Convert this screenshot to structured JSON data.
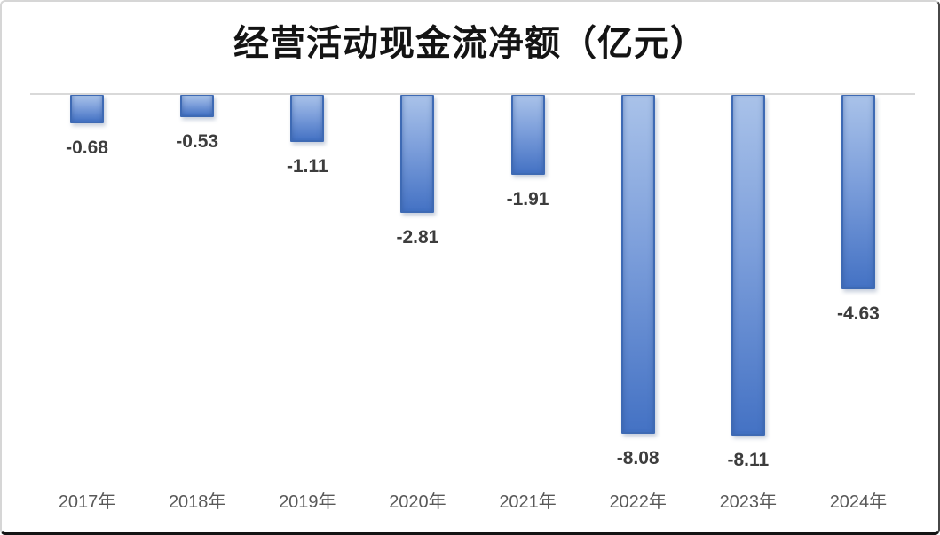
{
  "title": "经营活动现金流净额（亿元）",
  "chart_data": {
    "type": "bar",
    "title": "经营活动现金流净额（亿元）",
    "categories": [
      "2017年",
      "2018年",
      "2019年",
      "2020年",
      "2021年",
      "2022年",
      "2023年",
      "2024年"
    ],
    "values": [
      -0.68,
      -0.53,
      -1.11,
      -2.81,
      -1.91,
      -8.08,
      -8.11,
      -4.63
    ],
    "labels": [
      "-0.68",
      "-0.53",
      "-1.11",
      "-2.81",
      "-1.91",
      "-8.08",
      "-8.11",
      "-4.63"
    ],
    "xlabel": "",
    "ylabel": "",
    "ylim": [
      -9,
      0
    ],
    "y_axis_visible": false,
    "gridlines": "zero-baseline-only",
    "legend_position": "none",
    "value_label_position": "outside-end-below",
    "colors": {
      "bar_gradient_top": "#a9c2e9",
      "bar_gradient_bottom": "#4472c4",
      "bar_border": "#3e6ab4",
      "zero_line": "#d9d9d9",
      "value_label": "#3d3d3d",
      "axis_label": "#595959",
      "title": "#141414",
      "background": "#ffffff"
    }
  }
}
